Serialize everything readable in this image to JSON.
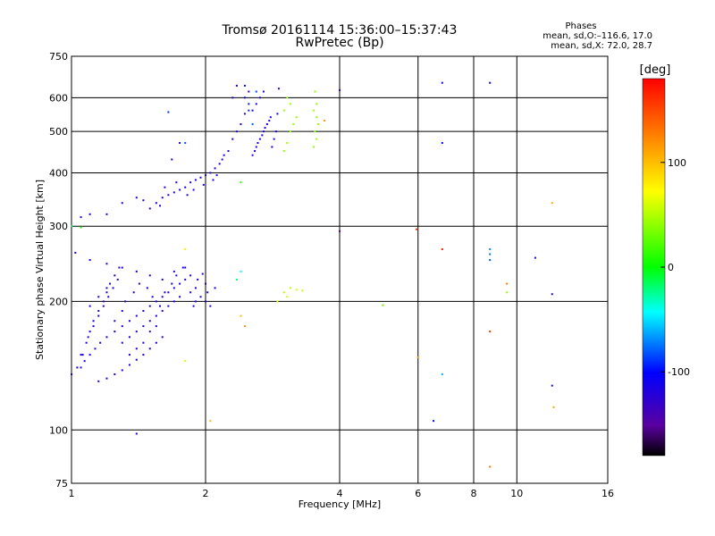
{
  "title_line1": "Tromsø 20161114 15:36:00–15:37:43",
  "title_line2": "RwPretec (Bp)",
  "stats": {
    "title": "Phases",
    "o_line": "mean, sd,O:–116.6, 17.0",
    "x_line": "mean, sd,X:  72.0, 28.7"
  },
  "chart_data": {
    "type": "scatter",
    "xlabel": "Frequency [MHz]",
    "ylabel": "Stationary phase Virtual Height [km]",
    "xscale": "log",
    "yscale": "log",
    "xlim": [
      1,
      16
    ],
    "ylim": [
      75,
      750
    ],
    "xticks": [
      1,
      2,
      4,
      6,
      8,
      10,
      16
    ],
    "yticks": [
      75,
      100,
      200,
      300,
      400,
      500,
      600,
      750
    ],
    "colorbar": {
      "label": "[deg]",
      "range": [
        -180,
        180
      ],
      "ticks": [
        100,
        0,
        -100
      ]
    },
    "grid": true,
    "points": [
      [
        1.05,
        150,
        -110
      ],
      [
        1.08,
        160,
        -115
      ],
      [
        1.1,
        170,
        -120
      ],
      [
        1.12,
        180,
        -110
      ],
      [
        1.15,
        190,
        -125
      ],
      [
        1.18,
        200,
        -118
      ],
      [
        1.2,
        210,
        -112
      ],
      [
        1.22,
        220,
        -122
      ],
      [
        1.25,
        230,
        -116
      ],
      [
        1.28,
        240,
        -119
      ],
      [
        1.05,
        140,
        -121
      ],
      [
        1.07,
        145,
        -117
      ],
      [
        1.1,
        150,
        -113
      ],
      [
        1.13,
        155,
        -124
      ],
      [
        1.16,
        160,
        -110
      ],
      [
        1.2,
        165,
        -118
      ],
      [
        1.25,
        170,
        -120
      ],
      [
        1.3,
        175,
        -115
      ],
      [
        1.35,
        180,
        -119
      ],
      [
        1.4,
        185,
        -122
      ],
      [
        1.45,
        190,
        -117
      ],
      [
        1.5,
        195,
        -121
      ],
      [
        1.55,
        200,
        -116
      ],
      [
        1.6,
        205,
        -114
      ],
      [
        1.65,
        210,
        -118
      ],
      [
        1.7,
        215,
        -120
      ],
      [
        1.75,
        220,
        -112
      ],
      [
        1.8,
        225,
        -119
      ],
      [
        1.85,
        230,
        -117
      ],
      [
        1.9,
        200,
        -116
      ],
      [
        1.02,
        260,
        -110
      ],
      [
        1.1,
        250,
        -112
      ],
      [
        1.2,
        245,
        -118
      ],
      [
        1.3,
        240,
        -121
      ],
      [
        1.4,
        235,
        -115
      ],
      [
        1.5,
        230,
        -119
      ],
      [
        1.6,
        225,
        -113
      ],
      [
        1.7,
        235,
        -120
      ],
      [
        1.8,
        240,
        -117
      ],
      [
        2.0,
        220,
        -115
      ],
      [
        1.15,
        130,
        -120
      ],
      [
        1.2,
        132,
        -118
      ],
      [
        1.25,
        135,
        -116
      ],
      [
        1.3,
        138,
        -121
      ],
      [
        1.35,
        142,
        -114
      ],
      [
        1.4,
        146,
        -119
      ],
      [
        1.45,
        150,
        -117
      ],
      [
        1.5,
        155,
        -122
      ],
      [
        1.55,
        160,
        -115
      ],
      [
        1.6,
        165,
        -118
      ],
      [
        1.0,
        135,
        -116
      ],
      [
        1.03,
        140,
        -120
      ],
      [
        1.06,
        150,
        -118
      ],
      [
        1.09,
        165,
        -122
      ],
      [
        1.12,
        175,
        -115
      ],
      [
        1.15,
        185,
        -119
      ],
      [
        1.18,
        195,
        -117
      ],
      [
        1.21,
        205,
        -121
      ],
      [
        1.24,
        215,
        -116
      ],
      [
        1.27,
        225,
        -118
      ],
      [
        1.3,
        160,
        -120
      ],
      [
        1.35,
        165,
        -117
      ],
      [
        1.4,
        170,
        -121
      ],
      [
        1.45,
        175,
        -115
      ],
      [
        1.5,
        180,
        -119
      ],
      [
        1.55,
        185,
        -116
      ],
      [
        1.6,
        190,
        -122
      ],
      [
        1.65,
        195,
        -118
      ],
      [
        1.7,
        200,
        -114
      ],
      [
        1.75,
        205,
        -120
      ],
      [
        1.32,
        200,
        -118
      ],
      [
        1.38,
        210,
        -116
      ],
      [
        1.42,
        220,
        -121
      ],
      [
        1.48,
        215,
        -117
      ],
      [
        1.52,
        205,
        -119
      ],
      [
        1.58,
        195,
        -115
      ],
      [
        1.62,
        210,
        -118
      ],
      [
        1.68,
        220,
        -116
      ],
      [
        1.72,
        230,
        -122
      ],
      [
        1.78,
        240,
        -117
      ],
      [
        1.1,
        195,
        -119
      ],
      [
        1.15,
        205,
        -116
      ],
      [
        1.2,
        215,
        -120
      ],
      [
        1.25,
        180,
        -118
      ],
      [
        1.3,
        190,
        -121
      ],
      [
        1.35,
        150,
        -115
      ],
      [
        1.4,
        155,
        -118
      ],
      [
        1.45,
        160,
        -117
      ],
      [
        1.5,
        170,
        -120
      ],
      [
        1.55,
        175,
        -116
      ],
      [
        1.85,
        210,
        -118
      ],
      [
        1.9,
        215,
        -120
      ],
      [
        1.95,
        205,
        -117
      ],
      [
        2.0,
        200,
        -119
      ],
      [
        2.05,
        195,
        -116
      ],
      [
        2.1,
        215,
        -118
      ],
      [
        1.88,
        195,
        -121
      ],
      [
        1.92,
        225,
        -115
      ],
      [
        1.97,
        232,
        -119
      ],
      [
        2.02,
        210,
        -117
      ],
      [
        1.5,
        330,
        -118
      ],
      [
        1.55,
        340,
        -120
      ],
      [
        1.6,
        350,
        -116
      ],
      [
        1.65,
        355,
        -119
      ],
      [
        1.7,
        360,
        -117
      ],
      [
        1.75,
        365,
        -121
      ],
      [
        1.8,
        370,
        -115
      ],
      [
        1.85,
        380,
        -118
      ],
      [
        1.9,
        385,
        -120
      ],
      [
        1.95,
        390,
        -116
      ],
      [
        2.0,
        395,
        -119
      ],
      [
        2.05,
        400,
        -117
      ],
      [
        2.1,
        410,
        -121
      ],
      [
        2.15,
        420,
        -115
      ],
      [
        2.2,
        440,
        -118
      ],
      [
        2.25,
        450,
        -120
      ],
      [
        2.3,
        480,
        -116
      ],
      [
        2.35,
        500,
        -119
      ],
      [
        2.4,
        520,
        -117
      ],
      [
        2.45,
        550,
        -121
      ],
      [
        1.45,
        345,
        -118
      ],
      [
        1.58,
        335,
        -116
      ],
      [
        1.62,
        370,
        -119
      ],
      [
        1.72,
        380,
        -117
      ],
      [
        1.82,
        355,
        -121
      ],
      [
        1.88,
        365,
        -115
      ],
      [
        1.98,
        375,
        -118
      ],
      [
        2.08,
        385,
        -120
      ],
      [
        2.12,
        395,
        -116
      ],
      [
        2.18,
        430,
        -119
      ],
      [
        1.3,
        340,
        -120
      ],
      [
        1.4,
        350,
        -117
      ],
      [
        1.2,
        320,
        -116
      ],
      [
        1.1,
        320,
        -118
      ],
      [
        1.05,
        315,
        -119
      ],
      [
        1.68,
        430,
        -117
      ],
      [
        1.75,
        470,
        -121
      ],
      [
        2.3,
        600,
        -118
      ],
      [
        2.35,
        640,
        -120
      ],
      [
        2.5,
        620,
        -116
      ],
      [
        2.55,
        440,
        -119
      ],
      [
        2.6,
        460,
        -117
      ],
      [
        2.65,
        480,
        -121
      ],
      [
        2.7,
        500,
        -115
      ],
      [
        2.75,
        520,
        -118
      ],
      [
        2.8,
        540,
        -120
      ],
      [
        2.55,
        560,
        -116
      ],
      [
        2.6,
        580,
        -119
      ],
      [
        2.65,
        600,
        -117
      ],
      [
        2.7,
        620,
        -121
      ],
      [
        2.58,
        450,
        -118
      ],
      [
        2.62,
        470,
        -116
      ],
      [
        2.68,
        490,
        -119
      ],
      [
        2.72,
        510,
        -117
      ],
      [
        2.78,
        530,
        -121
      ],
      [
        2.82,
        460,
        -115
      ],
      [
        2.85,
        480,
        -118
      ],
      [
        2.88,
        500,
        -120
      ],
      [
        2.9,
        550,
        -116
      ],
      [
        2.92,
        630,
        -119
      ],
      [
        2.45,
        600,
        -100
      ],
      [
        2.5,
        560,
        -90
      ],
      [
        2.55,
        520,
        -80
      ],
      [
        1.65,
        555,
        -90
      ],
      [
        2.5,
        580,
        -95
      ],
      [
        2.45,
        640,
        -100
      ],
      [
        2.6,
        620,
        -85
      ],
      [
        3.0,
        450,
        40
      ],
      [
        3.05,
        470,
        45
      ],
      [
        3.1,
        500,
        38
      ],
      [
        3.15,
        520,
        42
      ],
      [
        3.2,
        540,
        41
      ],
      [
        3.0,
        560,
        44
      ],
      [
        3.1,
        580,
        39
      ],
      [
        3.05,
        600,
        43
      ],
      [
        3.5,
        460,
        40
      ],
      [
        3.55,
        480,
        45
      ],
      [
        3.52,
        500,
        38
      ],
      [
        3.58,
        520,
        42
      ],
      [
        3.55,
        540,
        41
      ],
      [
        3.5,
        560,
        44
      ],
      [
        3.55,
        580,
        39
      ],
      [
        3.52,
        620,
        43
      ],
      [
        3.7,
        530,
        120
      ],
      [
        2.4,
        380,
        10
      ],
      [
        2.4,
        235,
        -40
      ],
      [
        2.35,
        225,
        -20
      ],
      [
        2.4,
        185,
        100
      ],
      [
        2.45,
        175,
        120
      ],
      [
        2.9,
        200,
        60
      ],
      [
        3.0,
        210,
        50
      ],
      [
        3.05,
        205,
        55
      ],
      [
        3.1,
        215,
        52
      ],
      [
        3.2,
        213,
        58
      ],
      [
        3.3,
        212,
        54
      ],
      [
        4.0,
        625,
        -120
      ],
      [
        4.0,
        292,
        -150
      ],
      [
        5.0,
        196,
        30
      ],
      [
        5.95,
        295,
        160
      ],
      [
        6.0,
        148,
        120
      ],
      [
        6.8,
        650,
        -110
      ],
      [
        6.8,
        470,
        -100
      ],
      [
        6.8,
        265,
        170
      ],
      [
        6.8,
        135,
        -60
      ],
      [
        6.5,
        105,
        -100
      ],
      [
        8.7,
        650,
        -105
      ],
      [
        8.7,
        265,
        -70
      ],
      [
        8.7,
        258,
        -75
      ],
      [
        8.7,
        250,
        -80
      ],
      [
        8.7,
        170,
        160
      ],
      [
        8.7,
        82,
        130
      ],
      [
        9.5,
        220,
        130
      ],
      [
        9.5,
        210,
        40
      ],
      [
        11.0,
        253,
        -120
      ],
      [
        12.0,
        208,
        -110
      ],
      [
        12.0,
        340,
        110
      ],
      [
        12.1,
        113,
        110
      ],
      [
        12.0,
        127,
        -100
      ],
      [
        1.8,
        145,
        60
      ],
      [
        1.8,
        265,
        80
      ],
      [
        2.05,
        105,
        100
      ],
      [
        1.4,
        98,
        -120
      ],
      [
        1.8,
        470,
        -80
      ],
      [
        1.0,
        300,
        -20
      ],
      [
        1.05,
        298,
        10
      ]
    ]
  }
}
